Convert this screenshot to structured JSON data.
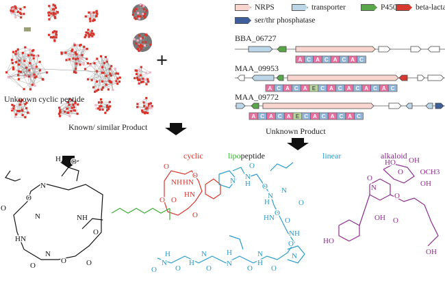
{
  "legend": [
    {
      "label": "NRPS",
      "color": "#f9d5cf"
    },
    {
      "label": "transporter",
      "color": "#bcd6e8"
    },
    {
      "label": "P450",
      "color": "#5aa64a"
    },
    {
      "label": "beta-lactamase",
      "color": "#d63a2f"
    },
    {
      "label": "ser/thr phosphatase",
      "color": "#3e5f9b"
    }
  ],
  "clusters": [
    {
      "name": "BBA_06727",
      "domains": [
        "A",
        "C",
        "A",
        "C",
        "A",
        "C",
        "A",
        "C"
      ]
    },
    {
      "name": "MAA_09953",
      "domains": [
        "A",
        "C",
        "A",
        "C",
        "A",
        "E",
        "C",
        "A",
        "C",
        "A",
        "C",
        "A",
        "C",
        "A",
        "C"
      ]
    },
    {
      "name": "MAA_09772",
      "domains": [
        "A",
        "C",
        "A",
        "C",
        "A",
        "E",
        "C",
        "A",
        "C",
        "A",
        "C",
        "A",
        "C"
      ]
    }
  ],
  "domain_colors": {
    "A": "#e9709e",
    "C": "#8fb5dd",
    "E": "#b8d89a"
  },
  "network": {
    "label_unknown": "Unknown cyclic peptide",
    "label_known": "Known/ similar Product",
    "node_color": "#d9342b",
    "edge_color": "#999999"
  },
  "plus_sign": "+",
  "unknown_product_label": "Unknown Product",
  "classes": {
    "cyclic": {
      "label": "cyclic",
      "color": "#d9342b"
    },
    "lipo": {
      "label": "lipo",
      "color": "#3fae3a"
    },
    "peptide": {
      "label": "peptide",
      "color": "#111111"
    },
    "linear": {
      "label": "linear",
      "color": "#2a9ccb"
    },
    "alkaloid": {
      "label": "alkaloid",
      "color": "#8e2c8e"
    }
  },
  "atoms": {
    "known": [
      "H",
      "O",
      "N",
      "O",
      "NH",
      "O",
      "O",
      "O",
      "N",
      "HN",
      "N",
      "O",
      "O"
    ],
    "cyclic": [
      "O",
      "NH",
      "HN",
      "O",
      "O",
      "O",
      "HN",
      "O"
    ],
    "linear": [
      "O",
      "N",
      "N",
      "H",
      "O",
      "N",
      "H",
      "O",
      "HN",
      "O",
      "NH",
      "O",
      "N",
      "O",
      "N",
      "H",
      "O",
      "H",
      "N",
      "O",
      "N",
      "H",
      "O",
      "H",
      "N",
      "O",
      "N",
      "O"
    ],
    "alkaloid": [
      "HO",
      "OH",
      "O",
      "OCH3",
      "OH",
      "O",
      "N",
      "O",
      "HO",
      "OH",
      "O",
      "OH"
    ]
  }
}
